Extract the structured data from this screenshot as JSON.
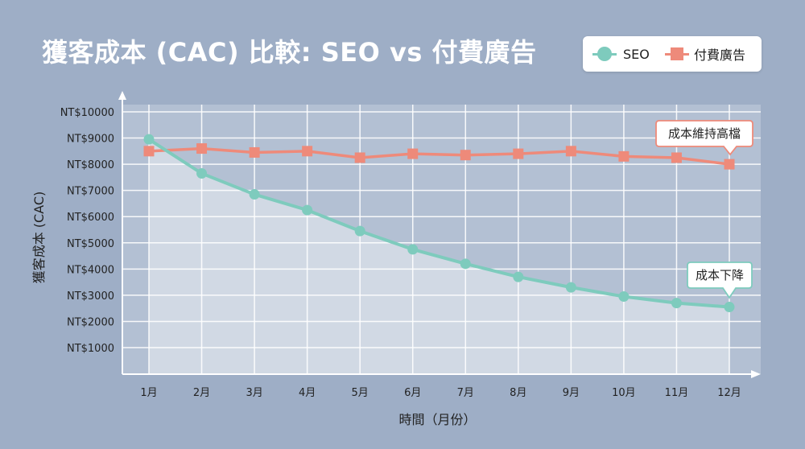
{
  "title": "獲客成本 (CAC) 比較: SEO vs 付費廣告",
  "legend": {
    "seo_label": "SEO",
    "paid_label": "付費廣告"
  },
  "colors": {
    "seo": "#7ecbbd",
    "paid": "#ee8a7a",
    "background": "#9eaec6"
  },
  "chart_data": {
    "type": "line",
    "title": "獲客成本 (CAC) 比較: SEO vs 付費廣告",
    "xlabel": "時間（月份）",
    "ylabel": "獲客成本 (CAC)",
    "categories": [
      "1月",
      "2月",
      "3月",
      "4月",
      "5月",
      "6月",
      "7月",
      "8月",
      "9月",
      "10月",
      "11月",
      "12月"
    ],
    "ylim": [
      0,
      10000
    ],
    "yticks": [
      1000,
      2000,
      3000,
      4000,
      5000,
      6000,
      7000,
      8000,
      9000,
      10000
    ],
    "ytick_labels": [
      "NT$1000",
      "NT$2000",
      "NT$3000",
      "NT$4000",
      "NT$5000",
      "NT$6000",
      "NT$7000",
      "NT$8000",
      "NT$9000",
      "NT$10000"
    ],
    "grid": true,
    "legend_position": "top-right",
    "series": [
      {
        "name": "SEO",
        "values": [
          8950,
          7650,
          6850,
          6250,
          5450,
          4750,
          4200,
          3700,
          3300,
          2950,
          2700,
          2550
        ]
      },
      {
        "name": "付費廣告",
        "values": [
          8500,
          8600,
          8450,
          8500,
          8250,
          8400,
          8350,
          8400,
          8500,
          8300,
          8250,
          8000
        ]
      }
    ],
    "annotations": [
      {
        "text": "成本維持高檔",
        "series": "付費廣告",
        "category": "12月"
      },
      {
        "text": "成本下降",
        "series": "SEO",
        "category": "12月"
      }
    ]
  }
}
